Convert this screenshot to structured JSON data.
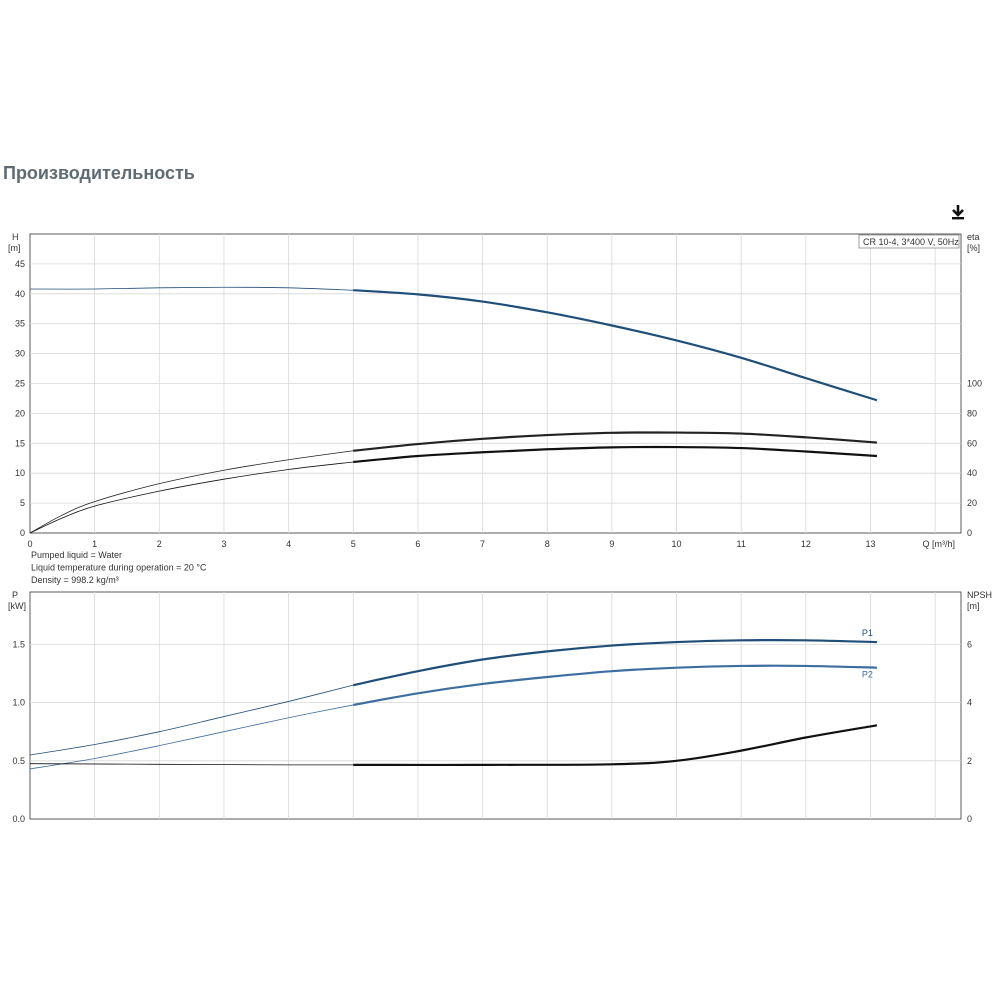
{
  "page": {
    "title": "Производительность"
  },
  "toolbar": {
    "download_icon": "download-icon"
  },
  "chart_data": [
    {
      "type": "line",
      "legend": "CR 10-4, 3*400 V, 50Hz",
      "x_axis": {
        "label": "Q [m³/h]",
        "range": [
          0,
          14.4
        ],
        "ticks": [
          0,
          1,
          2,
          3,
          4,
          5,
          6,
          7,
          8,
          9,
          10,
          11,
          12,
          13
        ]
      },
      "y_left": {
        "label_top": "H",
        "label_unit": "[m]",
        "range": [
          0,
          50
        ],
        "ticks": [
          0,
          5,
          10,
          15,
          20,
          25,
          30,
          35,
          40,
          45
        ]
      },
      "y_right": {
        "label_top": "eta",
        "label_unit": "[%]",
        "range": [
          0,
          200
        ],
        "ticks": [
          0,
          20,
          40,
          60,
          80,
          100
        ]
      },
      "series": [
        {
          "axis": "left",
          "color": "#1f4e79",
          "operating_from": 5,
          "points": [
            [
              0,
              40.8
            ],
            [
              1,
              40.8
            ],
            [
              2,
              41.0
            ],
            [
              3,
              41.1
            ],
            [
              4,
              41.0
            ],
            [
              5,
              40.6
            ],
            [
              6,
              39.9
            ],
            [
              7,
              38.7
            ],
            [
              8,
              36.9
            ],
            [
              9,
              34.7
            ],
            [
              10,
              32.2
            ],
            [
              11,
              29.3
            ],
            [
              12,
              25.9
            ],
            [
              13.1,
              22.2
            ]
          ]
        },
        {
          "axis": "right",
          "color": "#222222",
          "operating_from": 5,
          "points": [
            [
              0,
              0
            ],
            [
              0.5,
              12
            ],
            [
              1,
              21
            ],
            [
              2,
              33
            ],
            [
              3,
              42
            ],
            [
              4,
              49
            ],
            [
              5,
              55
            ],
            [
              6,
              59.5
            ],
            [
              7,
              63
            ],
            [
              8,
              65.5
            ],
            [
              9,
              67
            ],
            [
              10,
              67.2
            ],
            [
              11,
              66.5
            ],
            [
              12,
              64
            ],
            [
              13.1,
              60.5
            ]
          ]
        },
        {
          "axis": "right",
          "color": "#111111",
          "operating_from": 5,
          "points": [
            [
              0,
              0
            ],
            [
              0.5,
              10
            ],
            [
              1,
              18
            ],
            [
              2,
              28
            ],
            [
              3,
              36
            ],
            [
              4,
              42.5
            ],
            [
              5,
              47.5
            ],
            [
              6,
              51.5
            ],
            [
              7,
              54
            ],
            [
              8,
              56
            ],
            [
              9,
              57.3
            ],
            [
              10,
              57.5
            ],
            [
              11,
              56.8
            ],
            [
              12,
              54.5
            ],
            [
              13.1,
              51.5
            ]
          ]
        }
      ]
    },
    {
      "type": "line",
      "notes": [
        "Pumped liquid = Water",
        "Liquid temperature during operation = 20 °C",
        "Density = 998.2 kg/m³"
      ],
      "x_axis": {
        "range": [
          0,
          14.4
        ],
        "ticks": [
          0,
          1,
          2,
          3,
          4,
          5,
          6,
          7,
          8,
          9,
          10,
          11,
          12,
          13
        ]
      },
      "y_left": {
        "label_top": "P",
        "label_unit": "[kW]",
        "range": [
          0,
          1.95
        ],
        "ticks": [
          0.0,
          0.5,
          1.0,
          1.5
        ]
      },
      "y_right": {
        "label_top": "NPSH",
        "label_unit": "[m]",
        "range": [
          0,
          7.8
        ],
        "ticks": [
          0,
          2,
          4,
          6
        ]
      },
      "series": [
        {
          "name": "P1",
          "axis": "left",
          "color": "#1f4e79",
          "operating_from": 5,
          "points": [
            [
              0,
              0.55
            ],
            [
              1,
              0.64
            ],
            [
              2,
              0.75
            ],
            [
              3,
              0.88
            ],
            [
              4,
              1.01
            ],
            [
              5,
              1.15
            ],
            [
              6,
              1.27
            ],
            [
              7,
              1.37
            ],
            [
              8,
              1.44
            ],
            [
              9,
              1.49
            ],
            [
              10,
              1.52
            ],
            [
              11,
              1.535
            ],
            [
              12,
              1.535
            ],
            [
              13.1,
              1.52
            ]
          ]
        },
        {
          "name": "P2",
          "axis": "left",
          "color": "#3d6ea0",
          "operating_from": 5,
          "points": [
            [
              0,
              0.43
            ],
            [
              1,
              0.52
            ],
            [
              2,
              0.63
            ],
            [
              3,
              0.75
            ],
            [
              4,
              0.87
            ],
            [
              5,
              0.98
            ],
            [
              6,
              1.08
            ],
            [
              7,
              1.16
            ],
            [
              8,
              1.22
            ],
            [
              9,
              1.27
            ],
            [
              10,
              1.3
            ],
            [
              11,
              1.315
            ],
            [
              12,
              1.315
            ],
            [
              13.1,
              1.3
            ]
          ]
        },
        {
          "axis": "right",
          "color": "#111111",
          "operating_from": 5,
          "points": [
            [
              0,
              1.9
            ],
            [
              2,
              1.88
            ],
            [
              4,
              1.86
            ],
            [
              5,
              1.86
            ],
            [
              7,
              1.86
            ],
            [
              9,
              1.88
            ],
            [
              10,
              2.0
            ],
            [
              11,
              2.35
            ],
            [
              12,
              2.8
            ],
            [
              13.1,
              3.22
            ]
          ]
        }
      ]
    }
  ]
}
